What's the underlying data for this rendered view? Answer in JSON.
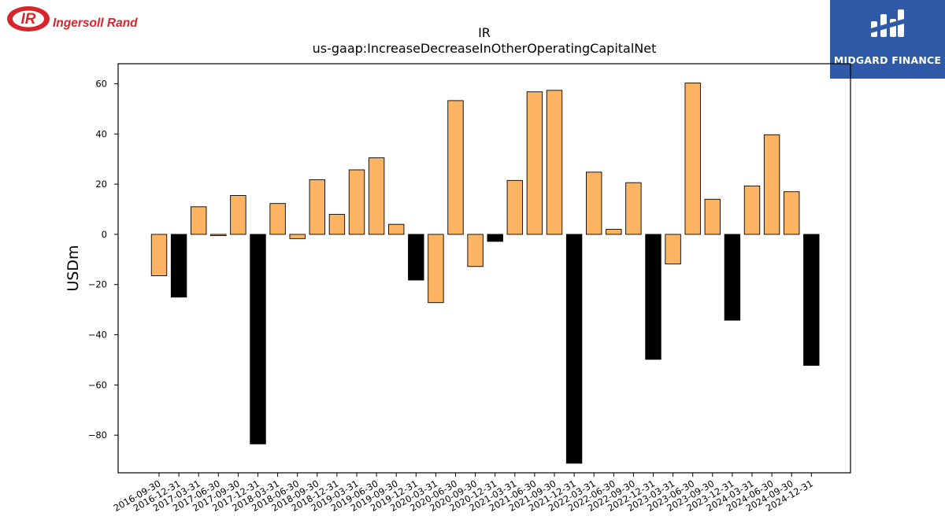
{
  "header": {
    "title": "IR",
    "subtitle": "us-gaap:IncreaseDecreaseInOtherOperatingCapitalNet"
  },
  "logos": {
    "company_logo_text": "Ingersoll Rand",
    "company_logo_mark": "IR",
    "company_logo_color": "#d7262b",
    "finance_logo_text": "MIDGARD FINANCE",
    "finance_logo_bg": "#2f5aa8"
  },
  "colors": {
    "positive_bar": "#fdb462",
    "negative_highlight_bar": "#000000",
    "bar_edge": "#000000"
  },
  "chart_data": {
    "type": "bar",
    "title": "IR",
    "subtitle": "us-gaap:IncreaseDecreaseInOtherOperatingCapitalNet",
    "xlabel": "",
    "ylabel": "USDm",
    "ylim": [
      -95,
      68
    ],
    "yticks": [
      60,
      40,
      20,
      0,
      -20,
      -40,
      -60,
      -80
    ],
    "ytick_labels": [
      "60",
      "40",
      "20",
      "0",
      "−20",
      "−40",
      "−60",
      "−80"
    ],
    "grid": false,
    "categories": [
      "2016-09-30",
      "2016-12-31",
      "2017-03-31",
      "2017-06-30",
      "2017-09-30",
      "2017-12-31",
      "2018-03-31",
      "2018-06-30",
      "2018-09-30",
      "2018-12-31",
      "2019-03-31",
      "2019-06-30",
      "2019-09-30",
      "2019-12-31",
      "2020-03-31",
      "2020-06-30",
      "2020-09-30",
      "2020-12-31",
      "2021-03-31",
      "2021-06-30",
      "2021-09-30",
      "2021-12-31",
      "2022-03-31",
      "2022-06-30",
      "2022-09-30",
      "2022-12-31",
      "2023-03-31",
      "2023-06-30",
      "2023-09-30",
      "2023-12-31",
      "2024-03-31",
      "2024-06-30",
      "2024-09-30",
      "2024-12-31"
    ],
    "values": [
      -16.5,
      -25,
      11,
      -0.5,
      15.5,
      -83.5,
      12.3,
      -1.7,
      21.8,
      8,
      25.7,
      30.5,
      4,
      -18.2,
      -27.2,
      53.3,
      -12.8,
      -2.8,
      21.5,
      56.8,
      57.4,
      -91.2,
      24.8,
      2,
      20.6,
      -49.8,
      -11.8,
      60.3,
      14,
      -34.2,
      19.3,
      39.7,
      17,
      -52.2
    ],
    "highlight_quarter_end": "12-31"
  }
}
